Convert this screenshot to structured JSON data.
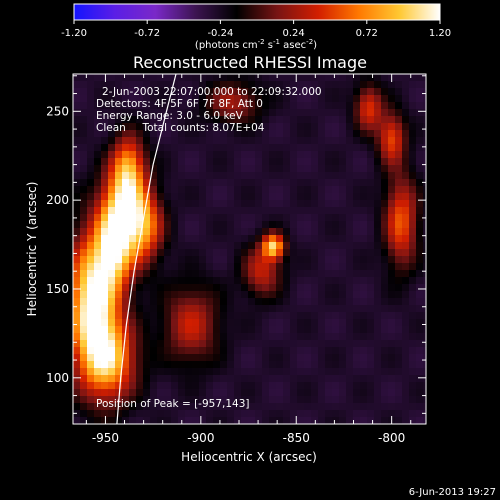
{
  "chart_data": {
    "type": "heatmap",
    "title": "Reconstructed RHESSI Image",
    "xlabel": "Heliocentric X (arcsec)",
    "ylabel": "Heliocentric Y (arcsec)",
    "xlim": [
      -967,
      -782
    ],
    "ylim": [
      74,
      271
    ],
    "x_ticks": [
      -950,
      -900,
      -850,
      -800
    ],
    "x_tick_labels": [
      "-950",
      "-900",
      "-850",
      "-800"
    ],
    "y_ticks": [
      100,
      150,
      200,
      250
    ],
    "y_tick_labels": [
      "100",
      "150",
      "200",
      "250"
    ],
    "colorbar": {
      "range": [
        -1.2,
        1.2
      ],
      "ticks": [
        -1.2,
        -0.72,
        -0.24,
        0.24,
        0.72,
        1.2
      ],
      "tick_labels": [
        "-1.20",
        "-0.72",
        "-0.24",
        "0.24",
        "0.72",
        "1.20"
      ],
      "units_main": "(photons cm",
      "units_sup1": "-2",
      "units_mid1": " s",
      "units_sup2": "-1",
      "units_mid2": " asec",
      "units_sup3": "-2",
      "units_end": ")",
      "colors": [
        "#1414ff",
        "#5a1ee6",
        "#7a28c8",
        "#3c1450",
        "#000000",
        "#781414",
        "#d21e00",
        "#ff7800",
        "#ffc832",
        "#ffffff"
      ]
    },
    "annotations": [
      "2-Jun-2003 22:07:00.000 to 22:09:32.000",
      "Detectors: 4F 5F 6F 7F 8F, Att 0",
      "Energy Range: 3.0 - 6.0 keV",
      "Clean     Total counts: 8.07E+04"
    ],
    "peak_label": "Position of Peak = [-957,143]",
    "peak": [
      -957,
      143
    ],
    "sources": [
      {
        "x": -957,
        "y": 143,
        "peak": 1.2,
        "sx": 9,
        "sy": 26
      },
      {
        "x": -945,
        "y": 175,
        "peak": 0.95,
        "sx": 7,
        "sy": 18
      },
      {
        "x": -930,
        "y": 185,
        "peak": 0.72,
        "sx": 7,
        "sy": 14
      },
      {
        "x": -948,
        "y": 110,
        "peak": 0.8,
        "sx": 10,
        "sy": 16
      },
      {
        "x": -938,
        "y": 220,
        "peak": 0.6,
        "sx": 6,
        "sy": 12
      },
      {
        "x": -862,
        "y": 174,
        "peak": 0.9,
        "sx": 4,
        "sy": 5
      },
      {
        "x": -868,
        "y": 160,
        "peak": 0.35,
        "sx": 7,
        "sy": 10
      },
      {
        "x": -795,
        "y": 188,
        "peak": 0.55,
        "sx": 6,
        "sy": 18
      },
      {
        "x": -800,
        "y": 235,
        "peak": 0.5,
        "sx": 5,
        "sy": 10
      },
      {
        "x": -812,
        "y": 252,
        "peak": 0.45,
        "sx": 5,
        "sy": 9
      },
      {
        "x": -905,
        "y": 130,
        "peak": 0.35,
        "sx": 10,
        "sy": 15
      },
      {
        "x": -940,
        "y": 200,
        "peak": 0.55,
        "sx": 8,
        "sy": 14
      },
      {
        "x": -883,
        "y": 255,
        "peak": 0.25,
        "sx": 10,
        "sy": 8
      }
    ],
    "background_level": -0.28,
    "limb_curve": [
      [
        -944,
        74
      ],
      [
        -942,
        100
      ],
      [
        -939,
        130
      ],
      [
        -935,
        160
      ],
      [
        -930,
        190
      ],
      [
        -925,
        220
      ],
      [
        -918,
        250
      ],
      [
        -913,
        271
      ]
    ]
  },
  "footer": {
    "timestamp": "6-Jun-2013 19:27"
  }
}
